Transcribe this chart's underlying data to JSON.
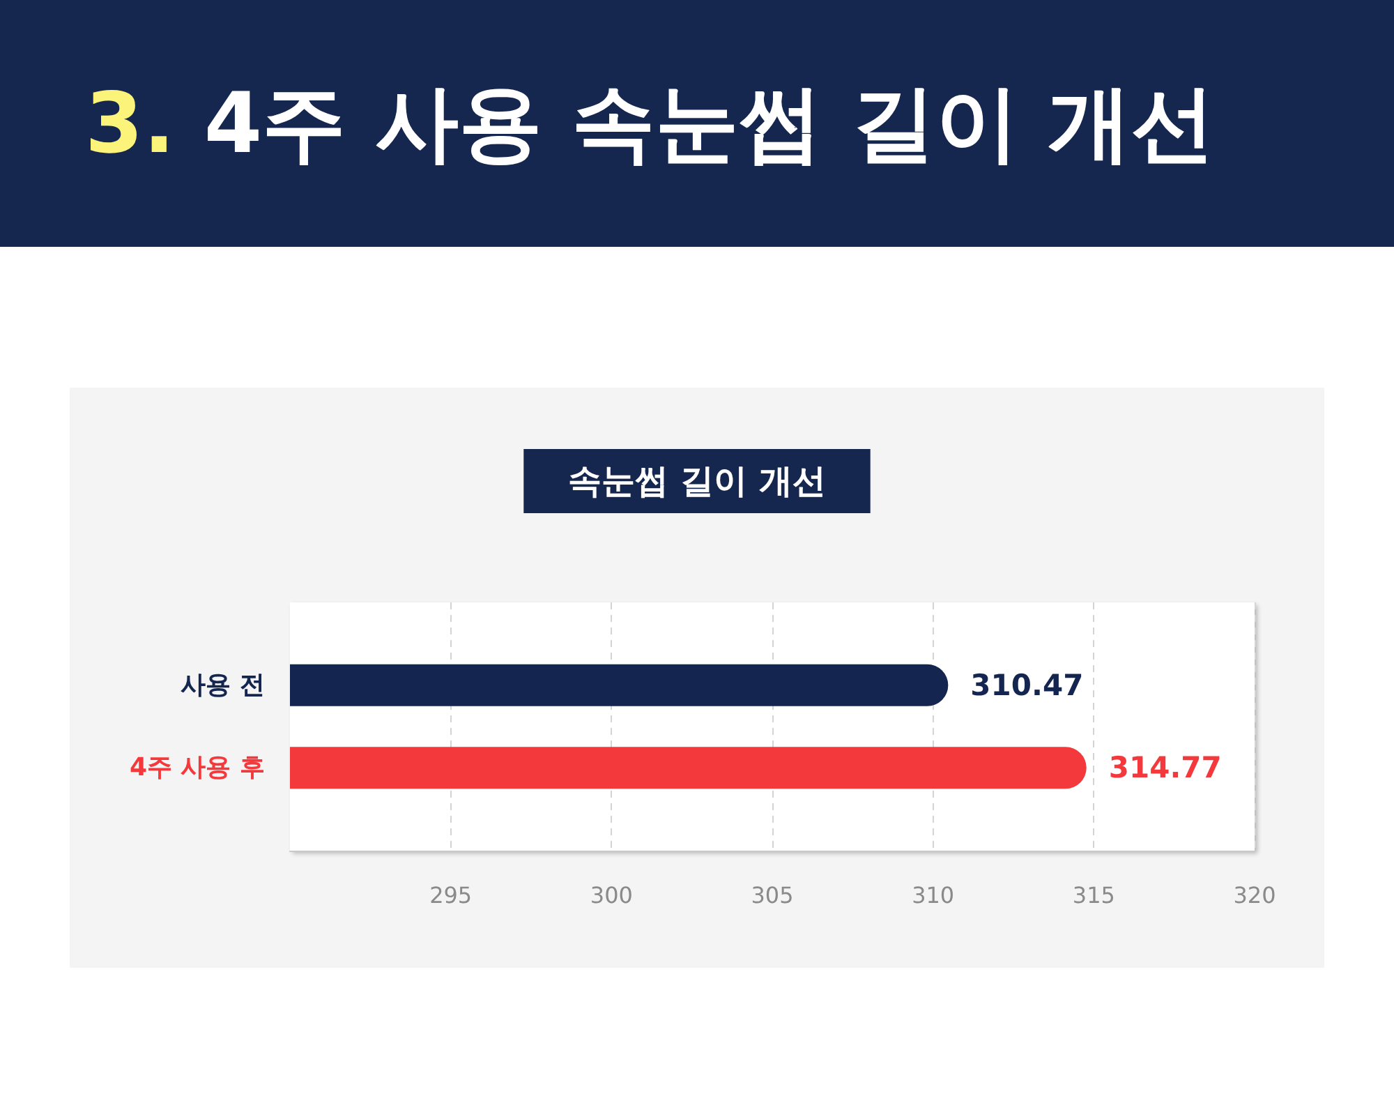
{
  "chart_data": {
    "type": "bar",
    "orientation": "horizontal",
    "title": "3. 4주 사용 속눈썹 길이 개선",
    "subtitle": "속눈썹 길이 개선",
    "categories": [
      "사용 전",
      "4주 사용 후"
    ],
    "values": [
      310.47,
      314.77
    ],
    "colors": [
      "#14254f",
      "#f4393c"
    ],
    "xlim": [
      290,
      320
    ],
    "xticks": [
      295,
      300,
      305,
      310,
      315,
      320
    ],
    "grid": "x",
    "data_labels": true
  }
}
